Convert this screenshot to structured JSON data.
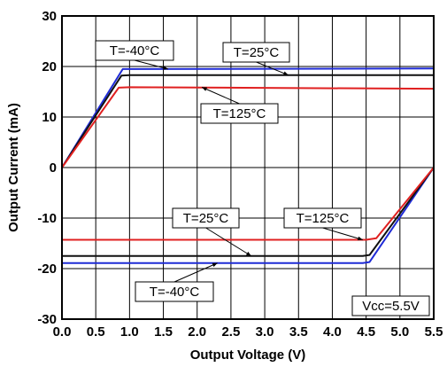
{
  "chart_data": {
    "type": "line",
    "title": "",
    "xlabel": "Output Voltage (V)",
    "ylabel": "Output Current (mA)",
    "xlim": [
      0,
      5.5
    ],
    "ylim": [
      -30,
      30
    ],
    "xticks": [
      "0.0",
      "0.5",
      "1.0",
      "1.5",
      "2.0",
      "2.5",
      "3.0",
      "3.5",
      "4.0",
      "4.5",
      "5.0",
      "5.5"
    ],
    "yticks": [
      "-30",
      "-20",
      "-10",
      "0",
      "10",
      "20",
      "30"
    ],
    "grid": true,
    "series": [
      {
        "name": "T=-40°C",
        "color": "#1f2bd6",
        "group": "source",
        "x": [
          0,
          0.9,
          1.0,
          5.5
        ],
        "y": [
          0,
          19.5,
          19.5,
          19.6
        ]
      },
      {
        "name": "T=25°C",
        "color": "#111111",
        "group": "source",
        "x": [
          0,
          0.88,
          1.0,
          5.5
        ],
        "y": [
          0,
          18.2,
          18.3,
          18.3
        ]
      },
      {
        "name": "T=125°C",
        "color": "#e02020",
        "group": "source",
        "x": [
          0,
          0.84,
          1.0,
          5.5
        ],
        "y": [
          0,
          15.8,
          15.9,
          15.6
        ]
      },
      {
        "name": "T=-40°C",
        "color": "#1f2bd6",
        "group": "sink",
        "x": [
          0,
          4.45,
          4.55,
          5.5
        ],
        "y": [
          -18.9,
          -18.9,
          -18.7,
          0
        ]
      },
      {
        "name": "T=25°C",
        "color": "#111111",
        "group": "sink",
        "x": [
          0,
          4.45,
          4.55,
          5.5
        ],
        "y": [
          -17.5,
          -17.5,
          -17.3,
          0
        ]
      },
      {
        "name": "T=125°C",
        "color": "#e02020",
        "group": "sink",
        "x": [
          0,
          4.5,
          4.65,
          5.5
        ],
        "y": [
          -14.3,
          -14.3,
          -14.0,
          0
        ]
      }
    ],
    "annotations": [
      {
        "text": "T=-40°C",
        "arrow_x": 1.57,
        "arrow_y": 19.5
      },
      {
        "text": "T=25°C",
        "arrow_x": 3.35,
        "arrow_y": 18.3
      },
      {
        "text": "T=125°C",
        "arrow_x": 2.07,
        "arrow_y": 15.9
      },
      {
        "text": "T=25°C",
        "arrow_x": 2.8,
        "arrow_y": -17.5
      },
      {
        "text": "T=125°C",
        "arrow_x": 4.45,
        "arrow_y": -14.3
      },
      {
        "text": "T=-40°C",
        "arrow_x": 2.3,
        "arrow_y": -18.9
      },
      {
        "text": "Vcc=5.5V"
      }
    ]
  }
}
